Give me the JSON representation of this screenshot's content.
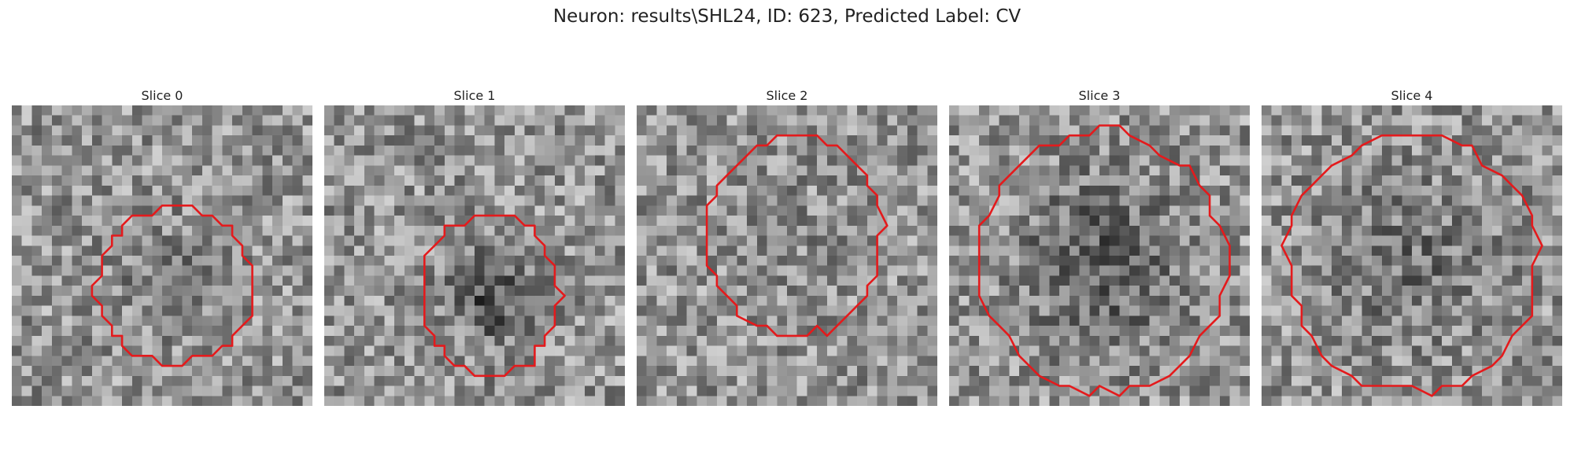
{
  "figure": {
    "title": "Neuron: results\\SHL24, ID: 623, Predicted Label: CV"
  },
  "colors": {
    "contour": "#e41a1c",
    "background": "#ffffff"
  },
  "panels": [
    {
      "title": "Slice 0",
      "image": "grayscale-noise-patch",
      "center": [
        0.54,
        0.6
      ],
      "rx": 0.26,
      "ry": 0.26,
      "dark": 0.28
    },
    {
      "title": "Slice 1",
      "image": "grayscale-noise-patch",
      "center": [
        0.55,
        0.63
      ],
      "rx": 0.23,
      "ry": 0.27,
      "dark": 0.62
    },
    {
      "title": "Slice 2",
      "image": "grayscale-noise-patch",
      "center": [
        0.53,
        0.43
      ],
      "rx": 0.29,
      "ry": 0.34,
      "dark": 0.05
    },
    {
      "title": "Slice 3",
      "image": "grayscale-noise-patch",
      "center": [
        0.51,
        0.52
      ],
      "rx": 0.41,
      "ry": 0.43,
      "dark": 0.55
    },
    {
      "title": "Slice 4",
      "image": "grayscale-noise-patch",
      "center": [
        0.5,
        0.52
      ],
      "rx": 0.42,
      "ry": 0.43,
      "dark": 0.32
    }
  ]
}
